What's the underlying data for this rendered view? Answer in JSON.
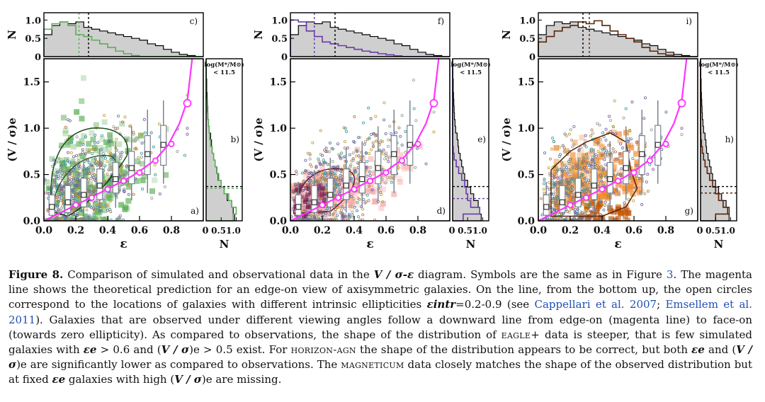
{
  "chart_data": [
    {
      "type": "scatter",
      "panel": "left",
      "colors": {
        "sim": "#5aaf55",
        "sim_contour": "#1a4a1a",
        "magenta": "#ff33ff",
        "obs_points": "#5a6fa8"
      },
      "main": {
        "label": "a)",
        "xlabel": "ε",
        "ylabel": "(V / σ)e",
        "xlim": [
          0.0,
          1.0
        ],
        "ylim": [
          0.0,
          1.75
        ],
        "xticks": [
          0.0,
          0.2,
          0.4,
          0.6,
          0.8
        ],
        "xtick_labels": [
          "0.0",
          "0.2",
          "0.4",
          "0.6",
          "0.8"
        ],
        "yticks": [
          0.0,
          0.5,
          1.0,
          1.5
        ],
        "ytick_labels": [
          "0.0",
          "0.5",
          "1.0",
          "1.5"
        ],
        "box_x": [
          0.05,
          0.15,
          0.25,
          0.35,
          0.45,
          0.55,
          0.65,
          0.75
        ],
        "box_med": [
          0.15,
          0.2,
          0.28,
          0.38,
          0.45,
          0.57,
          0.72,
          0.82
        ],
        "box_q1": [
          0.06,
          0.09,
          0.15,
          0.23,
          0.3,
          0.4,
          0.5,
          0.6
        ],
        "box_q3": [
          0.28,
          0.38,
          0.46,
          0.56,
          0.63,
          0.75,
          0.92,
          1.03
        ],
        "box_lo": [
          0.02,
          0.03,
          0.05,
          0.09,
          0.14,
          0.22,
          0.3,
          0.4
        ],
        "box_hi": [
          0.42,
          0.55,
          0.68,
          0.78,
          0.86,
          1.02,
          1.2,
          1.3
        ]
      },
      "top": {
        "label": "c)",
        "ylabel": "N",
        "ytick_labels": [
          "0",
          "0.5",
          "1.0"
        ],
        "obs_median": 0.28,
        "sim_median": 0.22
      },
      "side": {
        "label": "b)",
        "note": "log(M*/M⊙) < 11.5",
        "xlabel": "N",
        "xtick_labels": [
          "0",
          "0.5",
          "1.0"
        ],
        "obs_median": 0.37,
        "sim_median": 0.35
      }
    },
    {
      "type": "scatter",
      "panel": "middle",
      "colors": {
        "sim": "#f4a9a9",
        "sim_contour": "#6a1a3a",
        "sim_hist": "#6a3aa8",
        "magenta": "#ff33ff"
      },
      "main": {
        "label": "d)",
        "xlabel": "ε",
        "ylabel": "(V / σ)e",
        "xlim": [
          0.0,
          1.0
        ],
        "ylim": [
          0.0,
          1.75
        ],
        "xticks": [
          0.0,
          0.2,
          0.4,
          0.6,
          0.8
        ],
        "xtick_labels": [
          "0.0",
          "0.2",
          "0.4",
          "0.6",
          "0.8"
        ],
        "yticks": [
          0.0,
          0.5,
          1.0,
          1.5
        ],
        "ytick_labels": [
          "0.0",
          "0.5",
          "1.0",
          "1.5"
        ],
        "box_x": [
          0.05,
          0.15,
          0.25,
          0.35,
          0.45,
          0.55,
          0.65,
          0.75
        ],
        "box_med": [
          0.15,
          0.2,
          0.28,
          0.38,
          0.45,
          0.57,
          0.72,
          0.82
        ],
        "box_q1": [
          0.06,
          0.09,
          0.15,
          0.23,
          0.3,
          0.4,
          0.5,
          0.6
        ],
        "box_q3": [
          0.28,
          0.38,
          0.46,
          0.56,
          0.63,
          0.75,
          0.92,
          1.03
        ],
        "box_lo": [
          0.02,
          0.03,
          0.05,
          0.09,
          0.14,
          0.22,
          0.3,
          0.4
        ],
        "box_hi": [
          0.42,
          0.55,
          0.68,
          0.78,
          0.86,
          1.02,
          1.2,
          1.3
        ]
      },
      "top": {
        "label": "f)",
        "ylabel": "N",
        "ytick_labels": [
          "0",
          "0.5",
          "1.0"
        ],
        "obs_median": 0.28,
        "sim_median": 0.15
      },
      "side": {
        "label": "e)",
        "note": "log(M*/M⊙) < 11.5",
        "xlabel": "N",
        "xtick_labels": [
          "0",
          "0.5",
          "1.0"
        ],
        "obs_median": 0.37,
        "sim_median": 0.24
      }
    },
    {
      "type": "scatter",
      "panel": "right",
      "colors": {
        "sim": "#f08a30",
        "sim_dark": "#c2560a",
        "sim_contour": "#5a2408",
        "magenta": "#ff33ff"
      },
      "main": {
        "label": "g)",
        "xlabel": "ε",
        "ylabel": "(V / σ)e",
        "xlim": [
          0.0,
          1.0
        ],
        "ylim": [
          0.0,
          1.75
        ],
        "xticks": [
          0.0,
          0.2,
          0.4,
          0.6,
          0.8
        ],
        "xtick_labels": [
          "0.0",
          "0.2",
          "0.4",
          "0.6",
          "0.8"
        ],
        "yticks": [
          0.0,
          0.5,
          1.0,
          1.5
        ],
        "ytick_labels": [
          "0.0",
          "0.5",
          "1.0",
          "1.5"
        ],
        "box_x": [
          0.05,
          0.15,
          0.25,
          0.35,
          0.45,
          0.55,
          0.65,
          0.75
        ],
        "box_med": [
          0.15,
          0.2,
          0.28,
          0.38,
          0.45,
          0.57,
          0.72,
          0.82
        ],
        "box_q1": [
          0.06,
          0.09,
          0.15,
          0.23,
          0.3,
          0.4,
          0.5,
          0.6
        ],
        "box_q3": [
          0.28,
          0.38,
          0.46,
          0.56,
          0.63,
          0.75,
          0.92,
          1.03
        ],
        "box_lo": [
          0.02,
          0.03,
          0.05,
          0.09,
          0.14,
          0.22,
          0.3,
          0.4
        ],
        "box_hi": [
          0.42,
          0.55,
          0.68,
          0.78,
          0.86,
          1.02,
          1.2,
          1.3
        ]
      },
      "top": {
        "label": "i)",
        "ylabel": "N",
        "ytick_labels": [
          "0",
          "0.5",
          "1.0"
        ],
        "obs_median": 0.28,
        "sim_median": 0.32
      },
      "side": {
        "label": "h)",
        "note": "log(M*/M⊙) < 11.5",
        "xlabel": "N",
        "xtick_labels": [
          "0",
          "0.5",
          "1.0"
        ],
        "obs_median": 0.37,
        "sim_median": 0.3
      }
    }
  ],
  "magenta_line": {
    "eps": [
      0.0,
      0.2,
      0.35,
      0.45,
      0.55,
      0.62,
      0.7,
      0.78,
      0.85,
      0.9,
      0.93
    ],
    "vs": [
      0.0,
      0.17,
      0.3,
      0.39,
      0.48,
      0.56,
      0.66,
      0.82,
      1.05,
      1.3,
      1.75
    ],
    "circles_eps": [
      0.2,
      0.3,
      0.4,
      0.5,
      0.6,
      0.7,
      0.8,
      0.9
    ],
    "circles_vs": [
      0.17,
      0.25,
      0.34,
      0.43,
      0.52,
      0.65,
      0.83,
      1.27
    ]
  },
  "caption": {
    "label": "Figure 8.",
    "part1": " Comparison of simulated and observational data in the ",
    "vs_eps": "V / σ-ε",
    "part2": " diagram. Symbols are the same as in Figure ",
    "figref": "3",
    "part3": ". The magenta line shows the theoretical prediction for an edge-on view of axisymmetric galaxies. On the line, from the bottom up, the open circles correspond to the locations of galaxies with different intrinsic ellipticities ",
    "eps_intr": "εintr",
    "part4": "=0.2-0.9 (see ",
    "cite1": "Cappellari et al. 2007",
    "sep": "; ",
    "cite2": "Emsellem et al. 2011",
    "part5": "). Galaxies that are observed under different viewing angles follow a downward line from edge-on (magenta line) to face-on (towards zero ellipticity). As compared to observations, the shape of the distribution of ",
    "eagle": "eagle+",
    "part6": " data is steeper, that is few simulated galaxies with ",
    "eps_e": "εe",
    "part7": " > 0.6 and (",
    "vs_e": "V / σ",
    "part8": ")e > 0.5 exist. For ",
    "horizon": "horizon-agn",
    "part9": " the shape of the distribution appears to be correct, but both ",
    "part10": " and (",
    "part11": ")e are significantly lower as compared to observations. The ",
    "magneticum": "magneticum",
    "part12": " data closely matches the shape of the observed distribution but at fixed ",
    "part13": " galaxies with high (",
    "part14": ")e are missing."
  }
}
